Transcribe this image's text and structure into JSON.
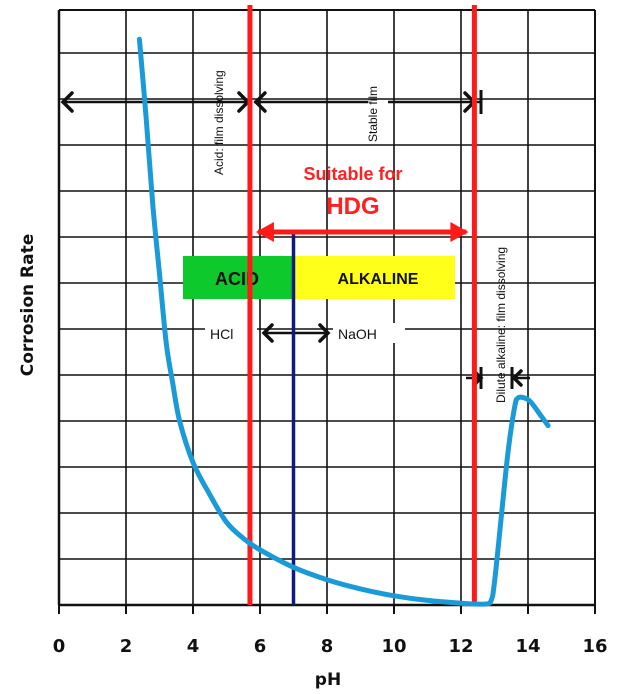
{
  "chart_data": {
    "type": "line",
    "title": "",
    "xlabel": "pH",
    "ylabel": "Corrosion Rate",
    "xlim": [
      0,
      16
    ],
    "x_ticks": [
      "0",
      "2",
      "4",
      "6",
      "8",
      "10",
      "12",
      "14",
      "16"
    ],
    "grid": true,
    "series": [
      {
        "color": "#1a9bd7",
        "points": [
          [
            2.4,
            12.3
          ],
          [
            2.6,
            10.6
          ],
          [
            2.8,
            8.7
          ],
          [
            3.0,
            7.2
          ],
          [
            3.2,
            5.7
          ],
          [
            3.4,
            4.8
          ],
          [
            3.6,
            4.0
          ],
          [
            4.0,
            3.1
          ],
          [
            4.5,
            2.4
          ],
          [
            5.0,
            1.8
          ],
          [
            5.5,
            1.45
          ],
          [
            6.0,
            1.2
          ],
          [
            7.0,
            0.82
          ],
          [
            8.0,
            0.55
          ],
          [
            9.0,
            0.35
          ],
          [
            10.0,
            0.2
          ],
          [
            11.0,
            0.1
          ],
          [
            12.0,
            0.04
          ],
          [
            12.7,
            0.02
          ],
          [
            12.9,
            0.1
          ],
          [
            13.0,
            0.5
          ],
          [
            13.2,
            1.9
          ],
          [
            13.4,
            3.3
          ],
          [
            13.6,
            4.3
          ],
          [
            13.7,
            4.5
          ],
          [
            13.9,
            4.5
          ],
          [
            14.1,
            4.4
          ],
          [
            14.4,
            4.1
          ],
          [
            14.6,
            3.9
          ]
        ]
      }
    ],
    "red_lines_x": [
      5.7,
      12.4
    ],
    "navy_line_x": 7.0,
    "annotations": {
      "acid_dissolving": "Acid: film dissolving",
      "stable_film": "Stable film",
      "dilute_alkaline": "Dilute alkaline: film dissolving",
      "suitable_line1": "Suitable for",
      "suitable_line2": "HDG",
      "acid_box": "ACID",
      "alkaline_box": "ALKALINE",
      "hcl": "HCl",
      "naoh": "NaOH"
    },
    "colors": {
      "curve": "#1a9bd7",
      "red": "#ff1a1a",
      "navy": "#101a80",
      "acid_box": "#0ec92b",
      "alkaline_box": "#ffff1a"
    }
  }
}
